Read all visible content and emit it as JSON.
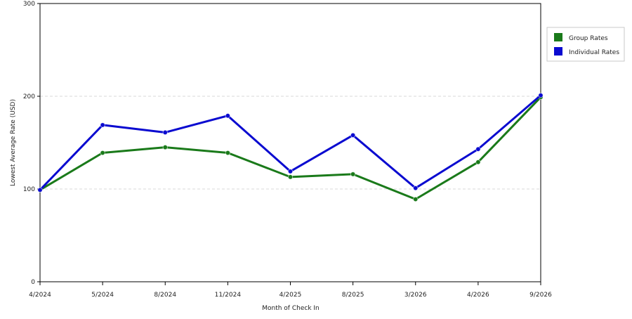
{
  "colors": {
    "group": "#1a7a1a",
    "individual": "#0a0ad0",
    "grid": "#d8d8d8",
    "axis": "#000000",
    "legend_border": "#c8c8c8"
  },
  "chart_data": {
    "type": "line",
    "x": [
      "4/2024",
      "5/2024",
      "8/2024",
      "11/2024",
      "4/2025",
      "8/2025",
      "3/2026",
      "4/2026",
      "9/2026"
    ],
    "series": [
      {
        "name": "Group Rates",
        "color_key": "group",
        "values": [
          99,
          139,
          145,
          139,
          113,
          116,
          89,
          129,
          199
        ]
      },
      {
        "name": "Individual Rates",
        "color_key": "individual",
        "values": [
          99,
          169,
          161,
          179,
          119,
          158,
          101,
          143,
          201
        ]
      }
    ],
    "xlabel": "Month of Check In",
    "ylabel": "Lowest Average Rate (USD)",
    "ylim": [
      0,
      300
    ],
    "yticks": [
      0,
      100,
      200,
      300
    ],
    "grid": "horizontal dashed",
    "legend_position": "top-right"
  }
}
